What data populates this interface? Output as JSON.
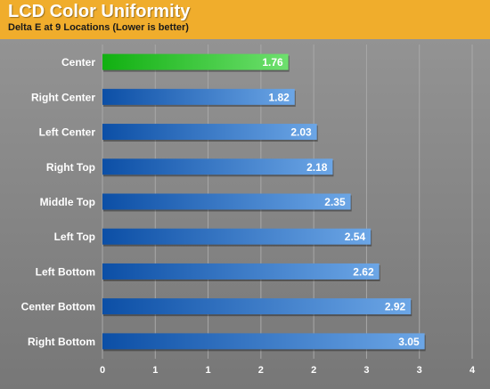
{
  "chart_data": {
    "type": "bar",
    "orientation": "horizontal",
    "title": "LCD Color Uniformity",
    "subtitle": "Delta E at 9 Locations (Lower is better)",
    "categories": [
      "Center",
      "Right Center",
      "Left Center",
      "Right Top",
      "Middle Top",
      "Left Top",
      "Left Bottom",
      "Center Bottom",
      "Right Bottom"
    ],
    "values": [
      1.76,
      1.82,
      2.03,
      2.18,
      2.35,
      2.54,
      2.62,
      2.92,
      3.05
    ],
    "value_labels": [
      "1.76",
      "1.82",
      "2.03",
      "2.18",
      "2.35",
      "2.54",
      "2.62",
      "2.92",
      "3.05"
    ],
    "xlim": [
      0,
      3.5
    ],
    "x_ticks": [
      0,
      0.5,
      1,
      1.5,
      2,
      2.5,
      3,
      3.5
    ],
    "x_tick_labels": [
      "0",
      "1",
      "1",
      "2",
      "2",
      "3",
      "3",
      "4"
    ],
    "grid": true,
    "legend": "none",
    "colors": {
      "highlight_bar": "#22c022",
      "bar": "#1a5fb8",
      "bar_light": "#6ca6e6",
      "header": "#f0ad2c",
      "plot_background": "#888888",
      "grid": "#a8a8a8"
    },
    "highlight_index": 0
  }
}
